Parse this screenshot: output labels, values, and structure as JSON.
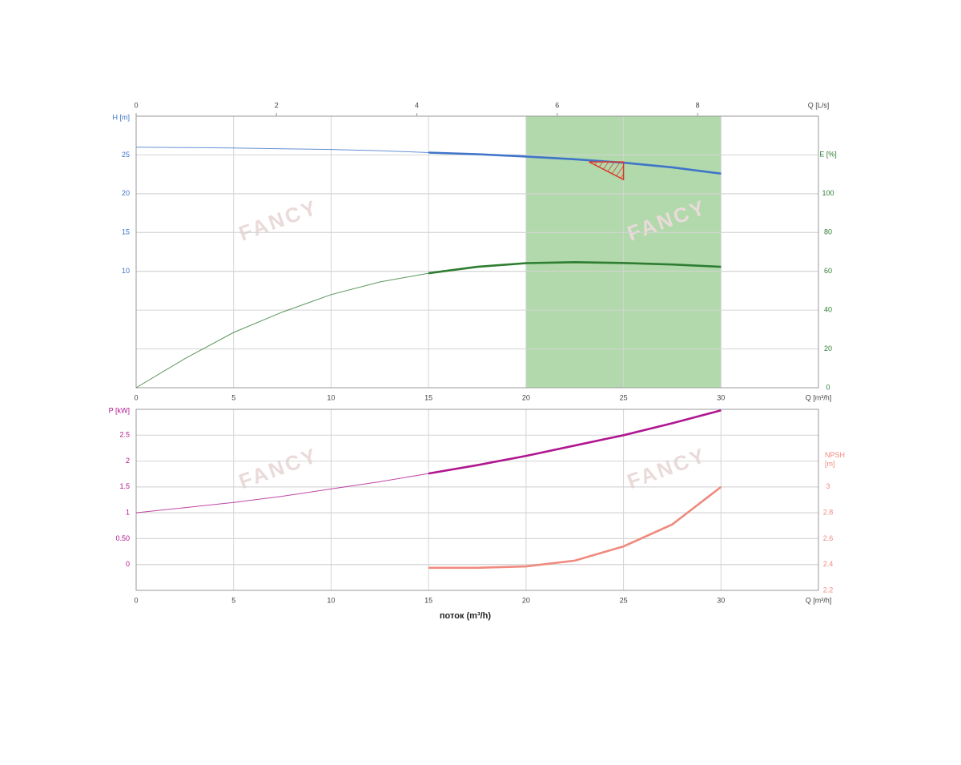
{
  "chart_data": [
    {
      "type": "line",
      "x2label": "Q [L/s]",
      "x2lim": [
        0,
        9.7222
      ],
      "x2ticks": [
        0,
        2,
        4,
        6,
        8
      ],
      "xlabel": "Q [m³/h]",
      "xlim": [
        0,
        35
      ],
      "xticks": [
        0,
        5,
        10,
        15,
        20,
        25,
        30
      ],
      "ylabel": "H [m]",
      "ylim": [
        -5,
        30
      ],
      "yticks": [
        10,
        15,
        20,
        25
      ],
      "y2label": "E [%]",
      "y2lim": [
        0,
        140
      ],
      "y2ticks": [
        0,
        20,
        40,
        60,
        80,
        100
      ],
      "grid": true,
      "thick_from": 15,
      "highlight_range": [
        20,
        30
      ],
      "highlight_color": "#a8d5a2",
      "duty_point": {
        "x": 25,
        "y": 24,
        "color": "#d93a2b"
      },
      "watermark": "FANCY",
      "x": [
        0,
        2.5,
        5,
        7.5,
        10,
        12.5,
        15,
        17.5,
        20,
        22.5,
        25,
        27.5,
        30
      ],
      "series": [
        {
          "name": "H",
          "color": "#3f74c9",
          "values": [
            26.0,
            25.95,
            25.9,
            25.8,
            25.7,
            25.55,
            25.3,
            25.1,
            24.8,
            24.45,
            24.0,
            23.4,
            22.6
          ]
        },
        {
          "name": "E",
          "color": "#2e7d32",
          "axis": "y2",
          "values": [
            0,
            15,
            28.5,
            39,
            48,
            54.5,
            59,
            62.3,
            64.2,
            64.7,
            64.3,
            63.5,
            62.3
          ]
        }
      ]
    },
    {
      "type": "line",
      "xlabel": "Q [m³/h]",
      "title": "поток (m³/h)",
      "xlim": [
        0,
        35
      ],
      "xticks": [
        0,
        5,
        10,
        15,
        20,
        25,
        30
      ],
      "ylabel": "P [kW]",
      "ylim": [
        -0.5,
        3
      ],
      "yticks": [
        0,
        {
          "value": 0.5,
          "label": "0.50"
        },
        1,
        1.5,
        2,
        2.5
      ],
      "y2label": "NPSH [m]",
      "y2lim": [
        2.2,
        3.6
      ],
      "y2ticks": [
        2.2,
        2.4,
        2.6,
        2.8,
        3
      ],
      "grid": true,
      "thick_from": 15,
      "watermark": "FANCY",
      "x": [
        0,
        2.5,
        5,
        7.5,
        10,
        12.5,
        15,
        17.5,
        20,
        22.5,
        25,
        27.5,
        30
      ],
      "series": [
        {
          "name": "P",
          "color": "#b0168f",
          "values": [
            1.0,
            1.1,
            1.2,
            1.32,
            1.46,
            1.6,
            1.76,
            1.92,
            2.1,
            2.3,
            2.5,
            2.73,
            2.98
          ]
        },
        {
          "name": "NPSH",
          "color": "#f08a7e",
          "axis": "y2",
          "values": [
            null,
            null,
            null,
            null,
            null,
            null,
            2.375,
            2.375,
            2.385,
            2.43,
            2.54,
            2.71,
            3.0
          ]
        }
      ]
    }
  ]
}
